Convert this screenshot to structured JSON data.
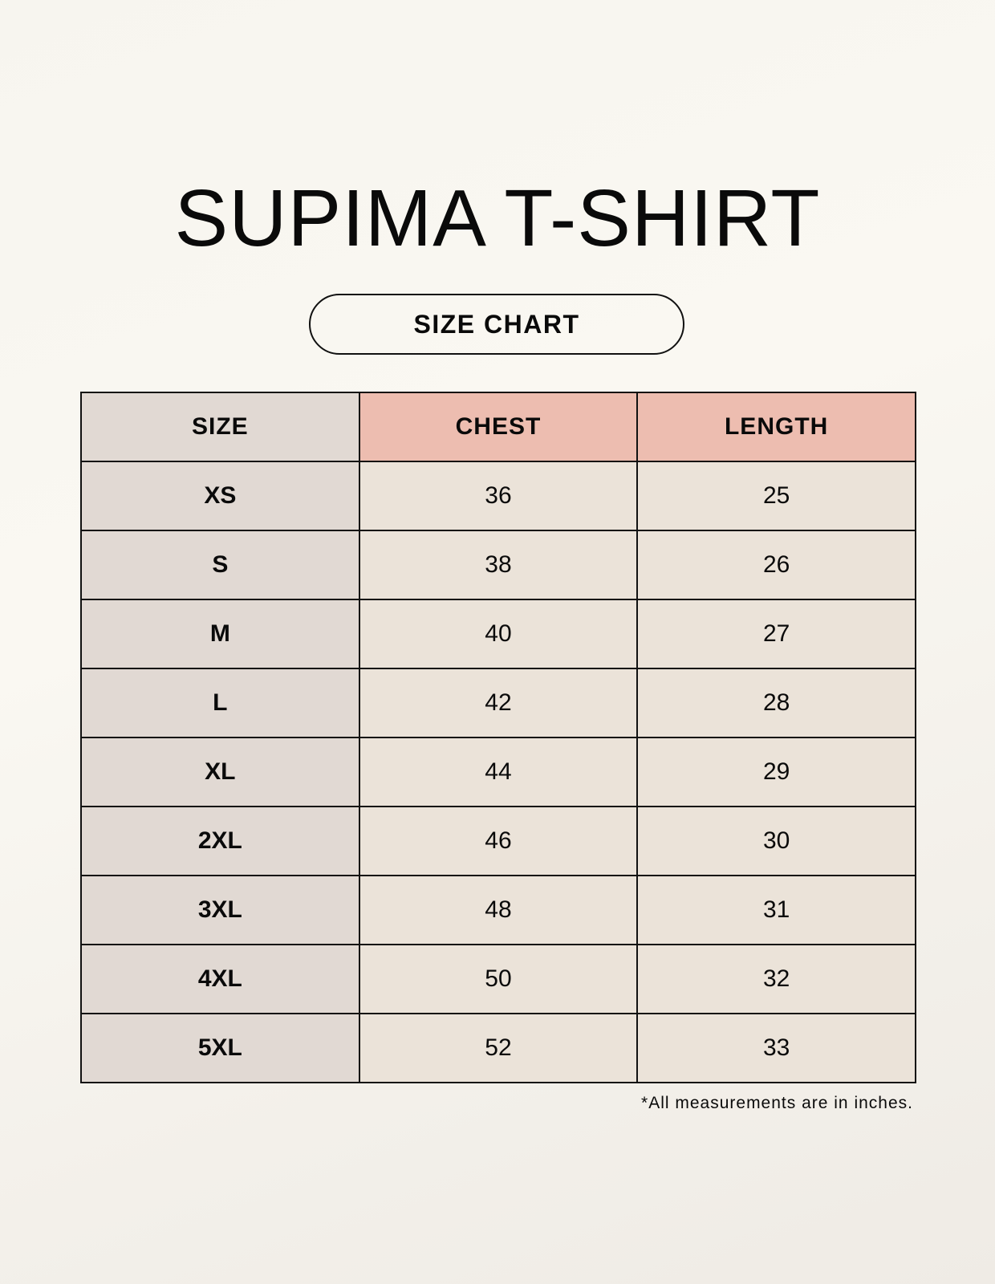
{
  "title": "SUPIMA T-SHIRT",
  "subtitle": "SIZE CHART",
  "colors": {
    "size_column": "#e1d9d3",
    "header_accent": "#edbdb0",
    "value_cells": "#ebe3d9"
  },
  "table": {
    "headers": [
      "SIZE",
      "CHEST",
      "LENGTH"
    ],
    "rows": [
      [
        "XS",
        "36",
        "25"
      ],
      [
        "S",
        "38",
        "26"
      ],
      [
        "M",
        "40",
        "27"
      ],
      [
        "L",
        "42",
        "28"
      ],
      [
        "XL",
        "44",
        "29"
      ],
      [
        "2XL",
        "46",
        "30"
      ],
      [
        "3XL",
        "48",
        "31"
      ],
      [
        "4XL",
        "50",
        "32"
      ],
      [
        "5XL",
        "52",
        "33"
      ]
    ]
  },
  "footnote": "*All measurements are in inches."
}
